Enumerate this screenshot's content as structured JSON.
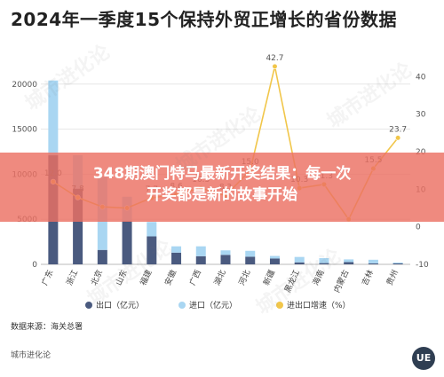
{
  "title": "2024年一季度15个保持外贸正增长的省份数据",
  "banner": {
    "line1": "348期澳门特马最新开奖结果：每一次",
    "line2": "开奖都是新的故事开始"
  },
  "source": "数据来源：海关总署",
  "brand": "城市进化论",
  "logo_text": "UE",
  "watermark_text": "城市进化论",
  "colors": {
    "export": "#4a5a7f",
    "import": "#a9d6f2",
    "growth": "#f1c64a",
    "axis": "#888888",
    "grid": "#e6e6e6"
  },
  "chart_data": {
    "type": "bar",
    "stacked": true,
    "categories": [
      "广东",
      "浙江",
      "北京",
      "山东",
      "福建",
      "安徽",
      "广西",
      "湖北",
      "河北",
      "新疆",
      "黑龙江",
      "海南",
      "内蒙古",
      "吉林",
      "贵州"
    ],
    "series": [
      {
        "name": "出口（亿元）",
        "type": "bar",
        "axis": "left",
        "values": [
          12100,
          8400,
          1600,
          4800,
          3100,
          1300,
          900,
          1050,
          850,
          650,
          220,
          140,
          250,
          110,
          100
        ]
      },
      {
        "name": "进口（亿元）",
        "type": "bar",
        "axis": "left",
        "values": [
          8300,
          3700,
          8100,
          2700,
          1600,
          700,
          1100,
          500,
          650,
          280,
          600,
          550,
          300,
          400,
          100
        ]
      },
      {
        "name": "进出口增速（%）",
        "type": "line",
        "axis": "right",
        "values": [
          12.0,
          7.8,
          5.3,
          5.0,
          7.7,
          8.6,
          10.3,
          8.3,
          15.0,
          42.7,
          10.3,
          11.3,
          2.0,
          15.5,
          23.7
        ]
      }
    ],
    "line_labels": [
      "12.0",
      "7.8",
      "",
      "",
      "7.7",
      "8.6",
      "10.3",
      "8.3",
      "15.0",
      "42.7",
      "10.3",
      "11.3",
      "",
      "15.5",
      "23.7"
    ],
    "ylim_left": [
      0,
      25000
    ],
    "yticks_left": [
      "0",
      "5000",
      "10000",
      "15000",
      "20000"
    ],
    "ylim_right": [
      -10,
      50
    ],
    "yticks_right": [
      "-10",
      "0",
      "10",
      "20",
      "30",
      "40"
    ],
    "legend_position": "bottom",
    "grid": true
  }
}
